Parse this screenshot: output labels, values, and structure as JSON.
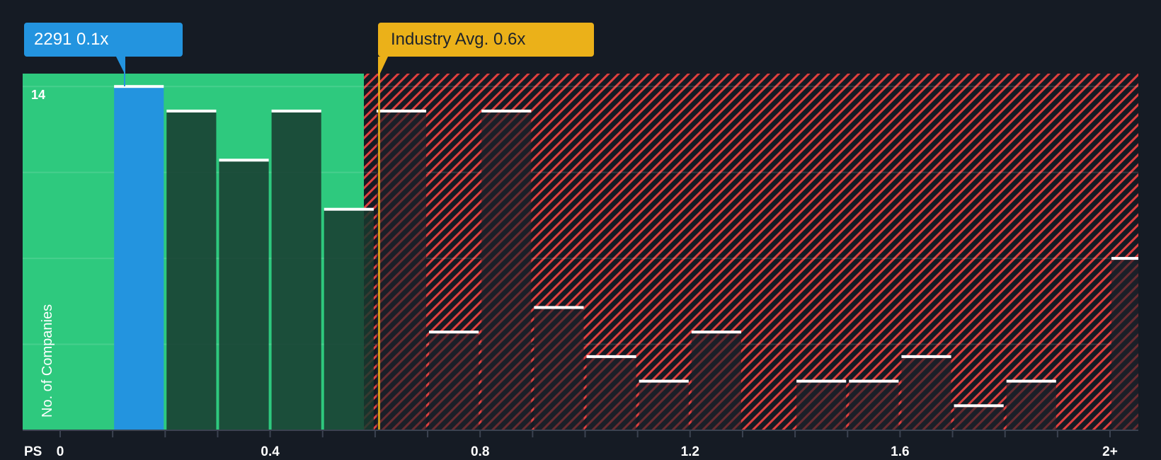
{
  "callouts": {
    "company": {
      "label": "2291 0.1x",
      "color": "#2394df",
      "value": 0.1
    },
    "industry": {
      "label": "Industry Avg. 0.6x",
      "color": "#ebb119",
      "value": 0.6
    }
  },
  "axis": {
    "y_label": "No. of Companies",
    "y_tick_label": "14",
    "x_prefix": "PS",
    "x_tick_labels": [
      {
        "label": "0",
        "value": 0
      },
      {
        "label": "0.4",
        "value": 0.4
      },
      {
        "label": "0.8",
        "value": 0.8
      },
      {
        "label": "1.2",
        "value": 1.2
      },
      {
        "label": "1.6",
        "value": 1.6
      },
      {
        "label": "2+",
        "value": 2.0
      }
    ]
  },
  "colors": {
    "background": "#151b24",
    "undervalued_zone": "#2ec97e",
    "overvalued_hatch": "#e0403f",
    "highlight_bar": "#2394df",
    "bar_green": "#1f4a3b",
    "bar_dark": "#1c1f28",
    "bar_cap": "#ffffff"
  },
  "chart_data": {
    "type": "bar",
    "title": "",
    "xlabel": "PS",
    "ylabel": "No. of Companies",
    "ylim": [
      0,
      14.5
    ],
    "grid": true,
    "categories": [
      "0.1-0.2",
      "0.2-0.3",
      "0.3-0.4",
      "0.4-0.5",
      "0.5-0.6",
      "0.6-0.7",
      "0.7-0.8",
      "0.8-0.9",
      "0.9-1.0",
      "1.0-1.1",
      "1.1-1.2",
      "1.2-1.3",
      "1.3-1.4",
      "1.4-1.5",
      "1.5-1.6",
      "1.6-1.7",
      "1.7-1.8",
      "1.8-1.9",
      "1.9-2.0",
      "2+"
    ],
    "values": [
      14,
      13,
      11,
      13,
      9,
      13,
      4,
      13,
      5,
      3,
      2,
      4,
      0,
      2,
      2,
      3,
      1,
      2,
      0,
      7
    ],
    "highlight": {
      "category": "0.1-0.2",
      "label": "2291 0.1x"
    },
    "reference_line": {
      "value": 0.6,
      "label": "Industry Avg. 0.6x"
    },
    "zones": [
      {
        "name": "undervalued",
        "from": 0,
        "to": 0.58,
        "color": "#2ec97e"
      },
      {
        "name": "overvalued",
        "from": 0.58,
        "to": 2.05,
        "color": "#e0403f"
      }
    ]
  }
}
